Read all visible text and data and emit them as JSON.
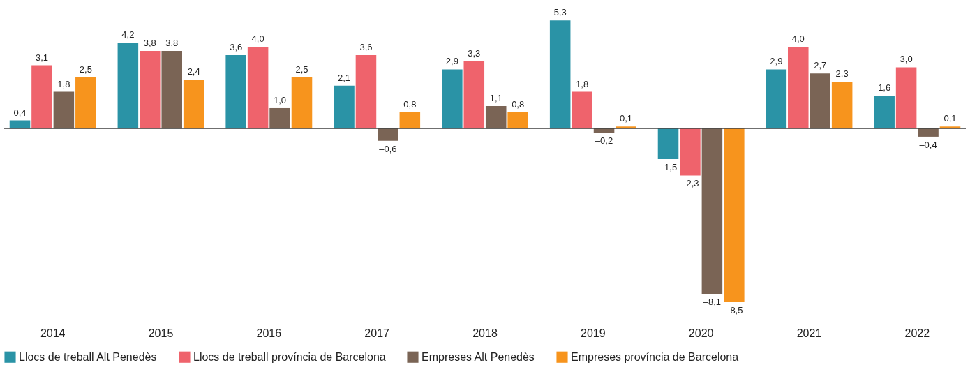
{
  "chart_data": {
    "type": "bar",
    "categories": [
      "2014",
      "2015",
      "2016",
      "2017",
      "2018",
      "2019",
      "2020",
      "2021",
      "2022"
    ],
    "series": [
      {
        "name": "Llocs de treball Alt Penedès",
        "color": "#2a93a6",
        "values": [
          0.4,
          4.2,
          3.6,
          2.1,
          2.9,
          5.3,
          -1.5,
          2.9,
          1.6
        ],
        "value_labels": [
          "0,4",
          "4,2",
          "3,6",
          "2,1",
          "2,9",
          "5,3",
          "–1,5",
          "2,9",
          "1,6"
        ]
      },
      {
        "name": "Llocs de treball província de Barcelona",
        "color": "#ef636c",
        "values": [
          3.1,
          3.8,
          4.0,
          3.6,
          3.3,
          1.8,
          -2.3,
          4.0,
          3.0
        ],
        "value_labels": [
          "3,1",
          "3,8",
          "4,0",
          "3,6",
          "3,3",
          "1,8",
          "–2,3",
          "4,0",
          "3,0"
        ]
      },
      {
        "name": "Empreses Alt Penedès",
        "color": "#7a6455",
        "values": [
          1.8,
          3.8,
          1.0,
          -0.6,
          1.1,
          -0.2,
          -8.1,
          2.7,
          -0.4
        ],
        "value_labels": [
          "1,8",
          "3,8",
          "1,0",
          "–0,6",
          "1,1",
          "–0,2",
          "–8,1",
          "2,7",
          "–0,4"
        ]
      },
      {
        "name": "Empreses província de Barcelona",
        "color": "#f7941d",
        "values": [
          2.5,
          2.4,
          2.5,
          0.8,
          0.8,
          0.1,
          -8.5,
          2.3,
          0.1
        ],
        "value_labels": [
          "2,5",
          "2,4",
          "2,5",
          "0,8",
          "0,8",
          "0,1",
          "–8,5",
          "2,3",
          "0,1"
        ]
      }
    ],
    "legend": "bottom",
    "grid": false
  }
}
